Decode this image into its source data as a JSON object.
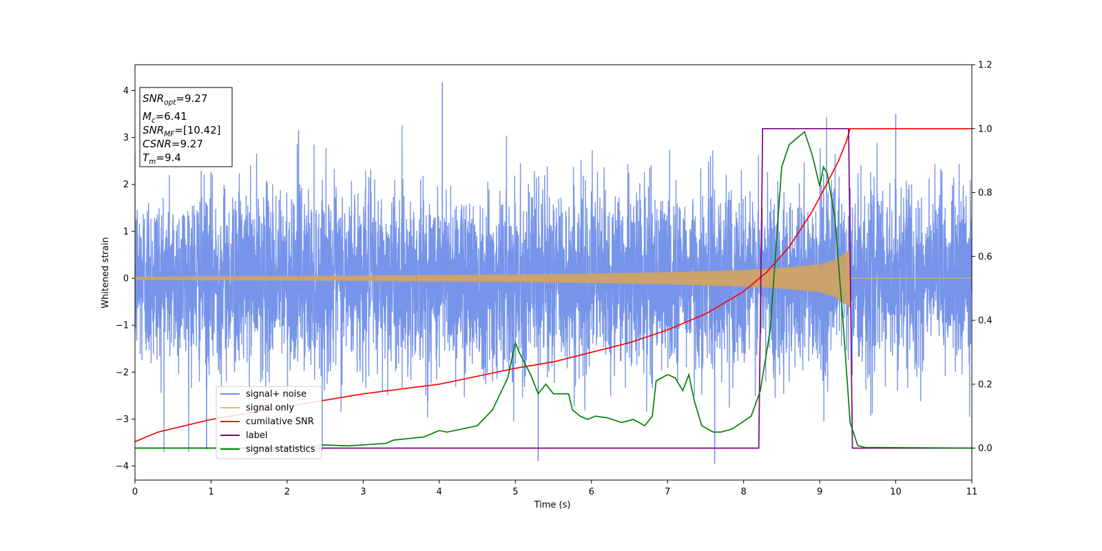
{
  "chart_data": {
    "type": "line",
    "xlabel": "Time (s)",
    "ylabel": "Whitened strain",
    "xlim": [
      0,
      11
    ],
    "ylim": [
      -4.3,
      4.55
    ],
    "y2lim": [
      -0.1,
      1.2
    ],
    "x_ticks": [
      "0",
      "1",
      "2",
      "3",
      "4",
      "5",
      "6",
      "7",
      "8",
      "9",
      "10",
      "11"
    ],
    "y_ticks": [
      "4",
      "3",
      "2",
      "1",
      "0",
      "−1",
      "−2",
      "−3",
      "−4"
    ],
    "y2_ticks": [
      "1.2",
      "1.0",
      "0.8",
      "0.6",
      "0.4",
      "0.2",
      "0.0"
    ],
    "info_box": {
      "snr_opt": {
        "base": "SNR",
        "sub": "opt",
        "value": "=9.27"
      },
      "mc": {
        "base": "M",
        "sub": "c",
        "value": "=6.41"
      },
      "snr_mf": {
        "base": "SNR",
        "sub": "MF",
        "value": "=[10.42]"
      },
      "csnr": {
        "base": "CSNR",
        "value": "=9.27"
      },
      "tm": {
        "base": "T",
        "sub": "m",
        "value": "=9.4"
      }
    },
    "legend_position": "lower-left",
    "series": [
      {
        "name": "signal+ noise",
        "color": "#6f8ee8",
        "axis": "left",
        "description_values": {
          "noise_std": 1.0,
          "peak_max": 4.18,
          "peak_min": -3.9
        }
      },
      {
        "name": "signal only",
        "color": "#f0b865",
        "axis": "left",
        "envelope": {
          "x": [
            0,
            3,
            5,
            6,
            7,
            8,
            8.5,
            9,
            9.2,
            9.4
          ],
          "amp": [
            0.03,
            0.05,
            0.08,
            0.1,
            0.13,
            0.18,
            0.22,
            0.3,
            0.4,
            0.62
          ]
        }
      },
      {
        "name": "cumilative SNR",
        "color": "#ff0000",
        "axis": "right",
        "x": [
          0,
          0.3,
          1,
          2,
          3,
          4,
          5,
          5.5,
          6,
          6.5,
          7,
          7.5,
          8,
          8.3,
          8.6,
          8.9,
          9.1,
          9.25,
          9.35,
          9.4,
          11
        ],
        "y": [
          0.02,
          0.05,
          0.09,
          0.13,
          0.17,
          0.2,
          0.25,
          0.27,
          0.3,
          0.33,
          0.37,
          0.42,
          0.49,
          0.55,
          0.63,
          0.74,
          0.83,
          0.9,
          0.96,
          1.0,
          1.0
        ]
      },
      {
        "name": "label",
        "color": "#800080",
        "axis": "right",
        "x": [
          0,
          8.2,
          8.25,
          9.38,
          9.43,
          11
        ],
        "y": [
          0,
          0,
          1,
          1,
          0,
          0
        ]
      },
      {
        "name": "signal statistics",
        "color": "#008000",
        "axis": "right",
        "x": [
          0,
          1,
          2,
          2.5,
          2.8,
          3.3,
          3.4,
          3.6,
          3.8,
          4,
          4.1,
          4.3,
          4.5,
          4.7,
          4.9,
          5,
          5.05,
          5.2,
          5.3,
          5.4,
          5.5,
          5.7,
          5.75,
          5.85,
          5.95,
          6.05,
          6.2,
          6.4,
          6.55,
          6.7,
          6.8,
          6.85,
          7,
          7.1,
          7.2,
          7.28,
          7.35,
          7.45,
          7.6,
          7.7,
          7.85,
          8.1,
          8.22,
          8.35,
          8.5,
          8.6,
          8.7,
          8.8,
          8.9,
          9,
          9.05,
          9.1,
          9.2,
          9.3,
          9.4,
          9.5,
          9.6,
          11
        ],
        "y": [
          0,
          0,
          0.002,
          0.01,
          0.007,
          0.015,
          0.025,
          0.03,
          0.035,
          0.055,
          0.05,
          0.06,
          0.07,
          0.12,
          0.22,
          0.33,
          0.3,
          0.23,
          0.17,
          0.2,
          0.17,
          0.17,
          0.12,
          0.1,
          0.09,
          0.1,
          0.095,
          0.08,
          0.09,
          0.07,
          0.1,
          0.21,
          0.23,
          0.22,
          0.18,
          0.23,
          0.15,
          0.07,
          0.05,
          0.05,
          0.06,
          0.1,
          0.18,
          0.37,
          0.88,
          0.95,
          0.97,
          0.99,
          0.92,
          0.82,
          0.88,
          0.86,
          0.72,
          0.42,
          0.08,
          0.008,
          0.002,
          0
        ]
      }
    ]
  }
}
